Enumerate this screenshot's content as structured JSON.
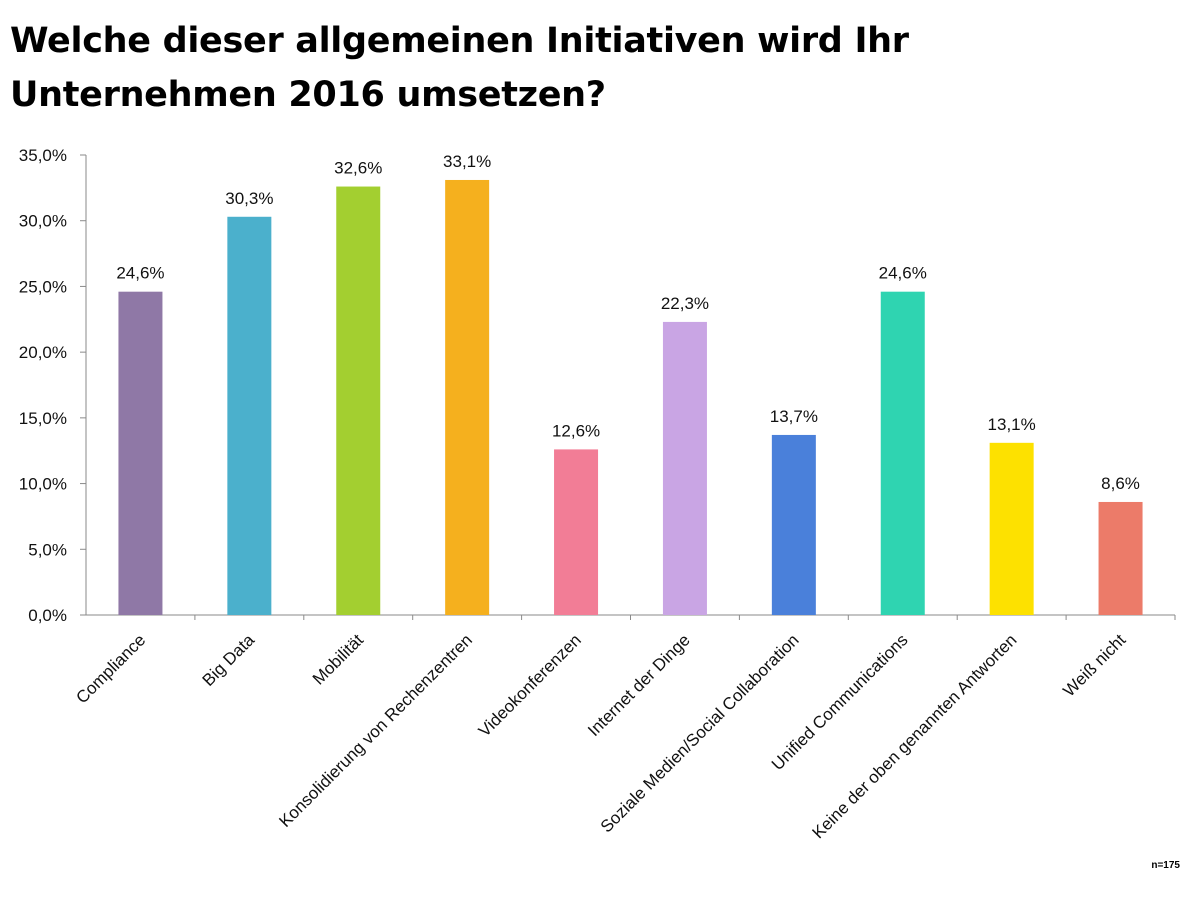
{
  "title": "Welche dieser allgemeinen Initiativen wird Ihr Unternehmen 2016 umsetzen?",
  "note": "n=175",
  "chart_data": {
    "type": "bar",
    "title": "Welche dieser allgemeinen Initiativen wird Ihr Unternehmen 2016 umsetzen?",
    "categories": [
      "Compliance",
      "Big Data",
      "Mobilität",
      "Konsolidierung von Rechenzentren",
      "Videokonferenzen",
      "Internet der Dinge",
      "Soziale Medien/Social Collaboration",
      "Unified Communications",
      "Keine der oben genannten Antworten",
      "Weiß nicht"
    ],
    "values": [
      24.6,
      30.3,
      32.6,
      33.1,
      12.6,
      22.3,
      13.7,
      24.6,
      13.1,
      8.6
    ],
    "data_labels": [
      "24,6%",
      "30,3%",
      "32,6%",
      "33,1%",
      "12,6%",
      "22,3%",
      "13,7%",
      "24,6%",
      "13,1%",
      "8,6%"
    ],
    "colors": [
      "#8f78a6",
      "#4bb0cc",
      "#a3cf30",
      "#f5b01e",
      "#f27d96",
      "#c9a5e4",
      "#4a80da",
      "#2fd4b1",
      "#fde100",
      "#ec7b69"
    ],
    "ylim": [
      0,
      35
    ],
    "y_ticks": [
      0,
      5,
      10,
      15,
      20,
      25,
      30,
      35
    ],
    "y_tick_labels": [
      "0,0%",
      "5,0%",
      "10,0%",
      "15,0%",
      "20,0%",
      "25,0%",
      "30,0%",
      "35,0%"
    ],
    "grid": false,
    "legend": "none"
  }
}
